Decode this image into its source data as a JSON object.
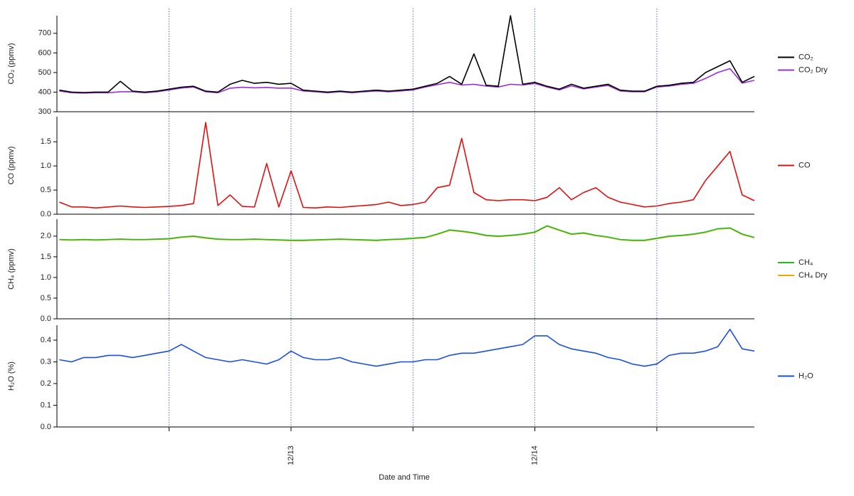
{
  "chart_data": {
    "type": "line",
    "xlabel": "Date and Time",
    "xlim": [
      12.04,
      14.9
    ],
    "xticks": [
      {
        "value": 13,
        "label": "12/13"
      },
      {
        "value": 14,
        "label": "12/14"
      }
    ],
    "xgrid": [
      12.5,
      13,
      13.5,
      14,
      14.5
    ],
    "x": [
      12.05,
      12.1,
      12.15,
      12.2,
      12.25,
      12.3,
      12.35,
      12.4,
      12.45,
      12.5,
      12.55,
      12.6,
      12.65,
      12.7,
      12.75,
      12.8,
      12.85,
      12.9,
      12.95,
      13.0,
      13.05,
      13.1,
      13.15,
      13.2,
      13.25,
      13.3,
      13.35,
      13.4,
      13.45,
      13.5,
      13.55,
      13.6,
      13.65,
      13.7,
      13.75,
      13.8,
      13.85,
      13.9,
      13.95,
      14.0,
      14.05,
      14.1,
      14.15,
      14.2,
      14.25,
      14.3,
      14.35,
      14.4,
      14.45,
      14.5,
      14.55,
      14.6,
      14.65,
      14.7,
      14.75,
      14.8,
      14.85,
      14.9
    ],
    "panels": [
      {
        "ylabel": "CO₂ (ppmv)",
        "ylim": [
          300,
          790
        ],
        "yticks": [
          300,
          400,
          500,
          600,
          700
        ],
        "series": [
          {
            "name": "CO₂",
            "color": "#000000",
            "values": [
              410,
              400,
              398,
              400,
              400,
              455,
              405,
              400,
              405,
              415,
              425,
              430,
              405,
              400,
              440,
              460,
              445,
              450,
              440,
              445,
              410,
              405,
              400,
              405,
              400,
              405,
              410,
              405,
              410,
              415,
              430,
              445,
              480,
              440,
              595,
              435,
              430,
              790,
              440,
              450,
              430,
              415,
              440,
              420,
              430,
              440,
              410,
              405,
              405,
              430,
              435,
              445,
              450,
              500,
              530,
              560,
              450,
              480
            ]
          },
          {
            "name": "CO₂ Dry",
            "color": "#9b30d9",
            "values": [
              406,
              397,
              395,
              397,
              397,
              402,
              402,
              397,
              402,
              411,
              421,
              426,
              402,
              397,
              420,
              425,
              422,
              424,
              420,
              421,
              406,
              402,
              397,
              402,
              397,
              402,
              406,
              402,
              406,
              411,
              426,
              438,
              450,
              436,
              440,
              431,
              426,
              440,
              436,
              444,
              426,
              411,
              432,
              416,
              426,
              434,
              406,
              402,
              402,
              426,
              431,
              440,
              445,
              470,
              500,
              520,
              446,
              460
            ]
          }
        ]
      },
      {
        "ylabel": "CO (ppmv)",
        "ylim": [
          0,
          2.02
        ],
        "yticks": [
          {
            "value": 0,
            "label": "0.0"
          },
          0.5,
          {
            "value": 1,
            "label": "1.0"
          },
          1.5
        ],
        "series": [
          {
            "name": "CO",
            "color": "#e01010",
            "values": [
              0.25,
              0.15,
              0.15,
              0.13,
              0.15,
              0.17,
              0.15,
              0.14,
              0.15,
              0.16,
              0.18,
              0.22,
              1.9,
              0.18,
              0.4,
              0.16,
              0.15,
              1.05,
              0.15,
              0.9,
              0.14,
              0.13,
              0.15,
              0.14,
              0.16,
              0.18,
              0.2,
              0.25,
              0.18,
              0.2,
              0.25,
              0.55,
              0.6,
              1.57,
              0.45,
              0.3,
              0.28,
              0.3,
              0.3,
              0.28,
              0.35,
              0.55,
              0.3,
              0.45,
              0.55,
              0.35,
              0.25,
              0.2,
              0.15,
              0.17,
              0.22,
              0.25,
              0.3,
              0.7,
              1.0,
              1.3,
              0.4,
              0.28
            ]
          }
        ]
      },
      {
        "ylabel": "CH₄ (ppmv)",
        "ylim": [
          0,
          2.41
        ],
        "yticks": [
          {
            "value": 0,
            "label": "0.0"
          },
          0.5,
          {
            "value": 1,
            "label": "1.0"
          },
          1.5,
          {
            "value": 2,
            "label": "2.0"
          }
        ],
        "series": [
          {
            "name": "CH₄",
            "color": "#22bb22",
            "values": [
              1.92,
              1.91,
              1.92,
              1.91,
              1.92,
              1.93,
              1.92,
              1.92,
              1.93,
              1.94,
              1.98,
              2.0,
              1.96,
              1.93,
              1.92,
              1.92,
              1.93,
              1.92,
              1.91,
              1.9,
              1.9,
              1.91,
              1.92,
              1.93,
              1.92,
              1.91,
              1.9,
              1.92,
              1.93,
              1.95,
              1.97,
              2.05,
              2.15,
              2.12,
              2.08,
              2.02,
              2.0,
              2.02,
              2.05,
              2.1,
              2.25,
              2.15,
              2.05,
              2.08,
              2.02,
              1.98,
              1.92,
              1.9,
              1.9,
              1.95,
              2.0,
              2.02,
              2.05,
              2.1,
              2.18,
              2.2,
              2.05,
              1.97
            ]
          },
          {
            "name": "CH₄ Dry",
            "color": "#f0a800",
            "values": [
              1.91,
              1.9,
              1.91,
              1.9,
              1.91,
              1.92,
              1.91,
              1.91,
              1.92,
              1.93,
              1.97,
              1.99,
              1.95,
              1.92,
              1.91,
              1.91,
              1.92,
              1.91,
              1.9,
              1.89,
              1.89,
              1.9,
              1.91,
              1.92,
              1.91,
              1.9,
              1.89,
              1.91,
              1.92,
              1.94,
              1.96,
              2.04,
              2.14,
              2.11,
              2.07,
              2.01,
              1.99,
              2.01,
              2.04,
              2.09,
              2.24,
              2.14,
              2.04,
              2.07,
              2.01,
              1.97,
              1.91,
              1.89,
              1.89,
              1.94,
              1.99,
              2.01,
              2.04,
              2.09,
              2.17,
              2.19,
              2.04,
              1.96
            ]
          }
        ]
      },
      {
        "ylabel": "H₂O (%)",
        "ylim": [
          0,
          0.469
        ],
        "yticks": [
          {
            "value": 0,
            "label": "0.0"
          },
          0.1,
          0.2,
          0.3,
          0.4
        ],
        "series": [
          {
            "name": "H₂O",
            "color": "#1a4fe0",
            "values": [
              0.31,
              0.3,
              0.32,
              0.32,
              0.33,
              0.33,
              0.32,
              0.33,
              0.34,
              0.35,
              0.38,
              0.35,
              0.32,
              0.31,
              0.3,
              0.31,
              0.3,
              0.29,
              0.31,
              0.35,
              0.32,
              0.31,
              0.31,
              0.32,
              0.3,
              0.29,
              0.28,
              0.29,
              0.3,
              0.3,
              0.31,
              0.31,
              0.33,
              0.34,
              0.34,
              0.35,
              0.36,
              0.37,
              0.38,
              0.42,
              0.42,
              0.38,
              0.36,
              0.35,
              0.34,
              0.32,
              0.31,
              0.29,
              0.28,
              0.29,
              0.33,
              0.34,
              0.34,
              0.35,
              0.37,
              0.45,
              0.36,
              0.35
            ]
          }
        ]
      }
    ]
  }
}
